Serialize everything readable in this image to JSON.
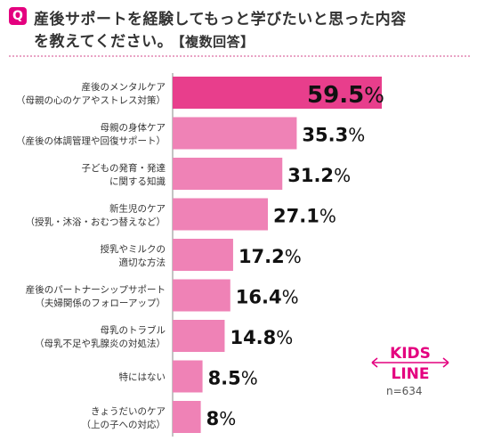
{
  "header": {
    "badge": "Q",
    "line1": "産後サポートを経験してもっと学びたいと思った内容",
    "line2": "を教えてください。",
    "tag": "【複数回答】"
  },
  "colors": {
    "accent": "#e4007f",
    "bar_top": "#e83e8c",
    "bar": "#ef82b6",
    "divider": "#e9a3c5",
    "text": "#333333"
  },
  "chart_data": {
    "type": "bar",
    "orientation": "horizontal",
    "unit": "%",
    "categories": [
      [
        "産後のメンタルケア",
        "（母親の心のケアやストレス対策）"
      ],
      [
        "母親の身体ケア",
        "（産後の体調管理や回復サポート）"
      ],
      [
        "子どもの発育・発達",
        "に関する知識"
      ],
      [
        "新生児のケア",
        "（授乳・沐浴・おむつ替えなど）"
      ],
      [
        "授乳やミルクの",
        "適切な方法"
      ],
      [
        "産後のパートナーシップサポート",
        "（夫婦関係のフォローアップ）"
      ],
      [
        "母乳のトラブル",
        "（母乳不足や乳腺炎の対処法）"
      ],
      [
        "特にはない"
      ],
      [
        "きょうだいのケア",
        "（上の子への対応）"
      ]
    ],
    "values": [
      59.5,
      35.3,
      31.2,
      27.1,
      17.2,
      16.4,
      14.8,
      8.5,
      8
    ],
    "value_labels": [
      "59.5",
      "35.3",
      "31.2",
      "27.1",
      "17.2",
      "16.4",
      "14.8",
      "8.5",
      "8"
    ],
    "xlim": [
      0,
      100
    ]
  },
  "brand": {
    "line1": "KIDS",
    "line2": "LINE"
  },
  "sample_size": "n=634"
}
